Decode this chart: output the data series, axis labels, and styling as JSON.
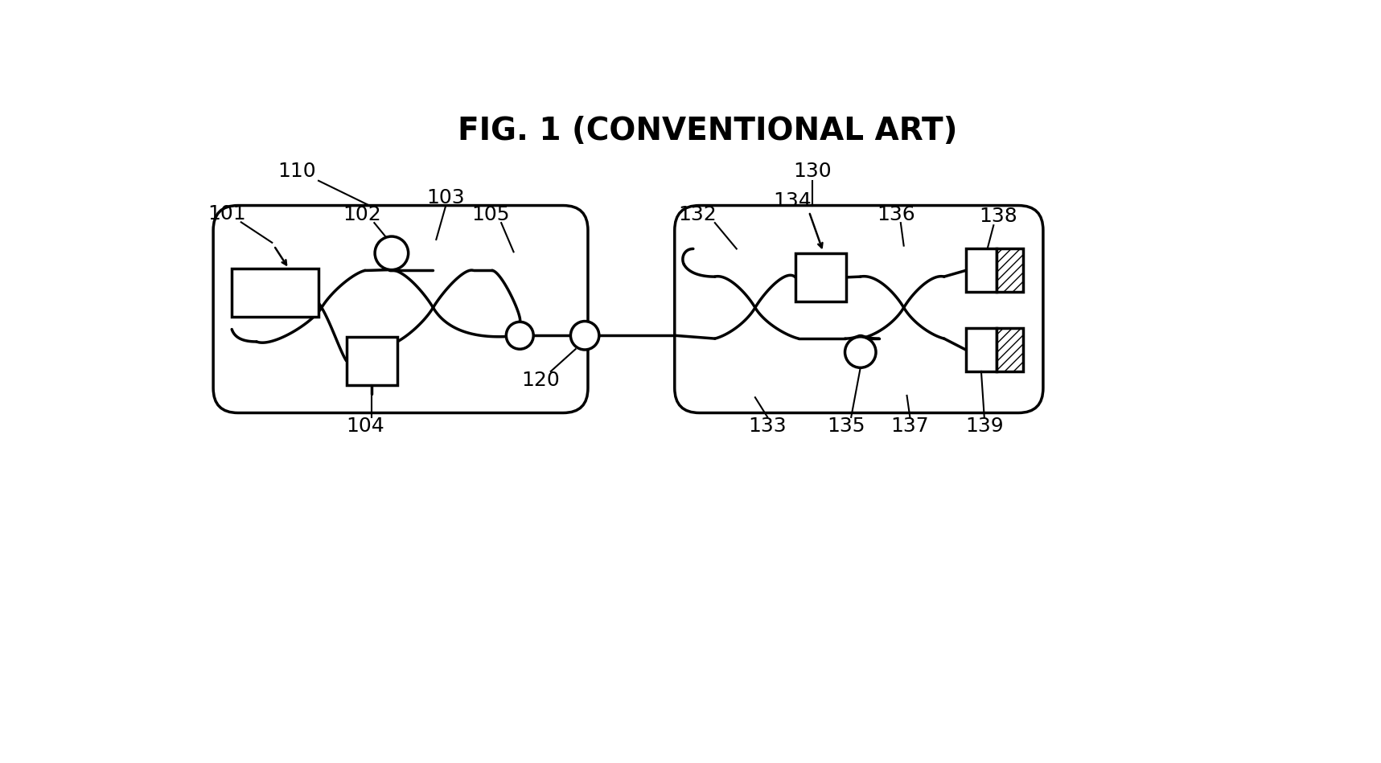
{
  "title": "FIG. 1 (CONVENTIONAL ART)",
  "title_fontsize": 28,
  "title_fontweight": "bold",
  "bg_color": "#ffffff",
  "line_color": "#000000",
  "line_width": 2.5,
  "fig_width": 17.17,
  "fig_height": 9.49,
  "label_fontsize": 18
}
